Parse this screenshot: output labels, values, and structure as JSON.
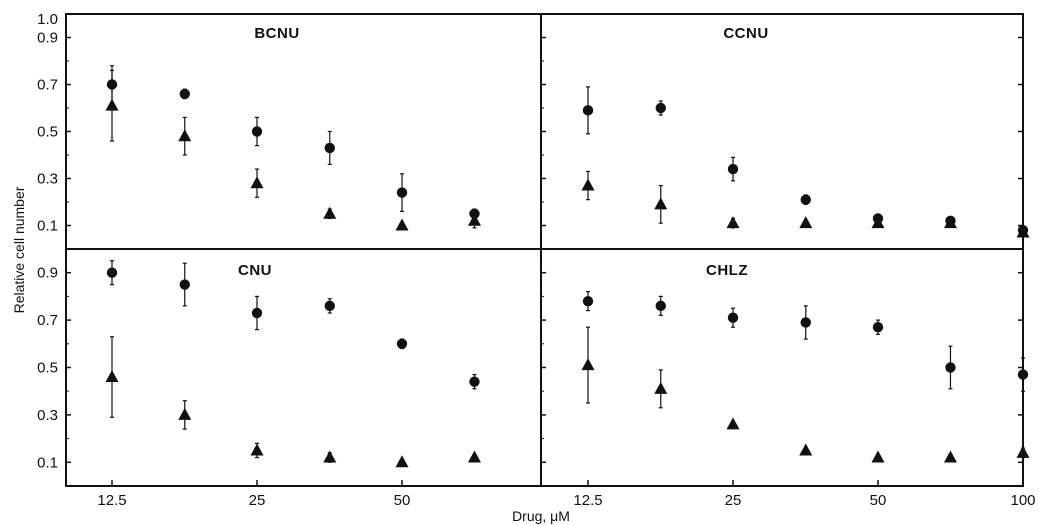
{
  "chart_data": {
    "type": "scatter",
    "ylabel": "Relative cell number",
    "xlabel": "Drug, μM",
    "x_scale": "log",
    "x_ticks": [
      12.5,
      25,
      50,
      100
    ],
    "x_tick_labels": [
      "12.5",
      "25",
      "50",
      "100"
    ],
    "y_axis_top_label": "1.0",
    "y_ticks": [
      0.1,
      0.3,
      0.5,
      0.7,
      0.9
    ],
    "y_tick_labels": [
      "0.1",
      "0.3",
      "0.5",
      "0.7",
      "0.9"
    ],
    "ylim": [
      0,
      1.0
    ],
    "markers": {
      "circle_series": "circle",
      "triangle_series": "triangle"
    },
    "colors": {
      "marker": "#111111",
      "frame": "#111111"
    },
    "panels": [
      {
        "title": "BCNU",
        "xlim": [
          10,
          80
        ],
        "series": [
          {
            "marker": "circle",
            "points": [
              {
                "x": 12.5,
                "y": 0.7,
                "err": 0.08
              },
              {
                "x": 17.7,
                "y": 0.66,
                "err": 0.02
              },
              {
                "x": 25,
                "y": 0.5,
                "err": 0.06
              },
              {
                "x": 35.4,
                "y": 0.43,
                "err": 0.07
              },
              {
                "x": 50,
                "y": 0.24,
                "err": 0.08
              },
              {
                "x": 70.7,
                "y": 0.15,
                "err": 0.02
              }
            ]
          },
          {
            "marker": "triangle",
            "points": [
              {
                "x": 12.5,
                "y": 0.61,
                "err": 0.15
              },
              {
                "x": 17.7,
                "y": 0.48,
                "err": 0.08
              },
              {
                "x": 25,
                "y": 0.28,
                "err": 0.06
              },
              {
                "x": 35.4,
                "y": 0.15,
                "err": 0.02
              },
              {
                "x": 50,
                "y": 0.1,
                "err": 0.01
              },
              {
                "x": 70.7,
                "y": 0.12,
                "err": 0.03
              }
            ]
          }
        ]
      },
      {
        "title": "CCNU",
        "xlim": [
          10,
          100
        ],
        "series": [
          {
            "marker": "circle",
            "points": [
              {
                "x": 12.5,
                "y": 0.59,
                "err": 0.1
              },
              {
                "x": 17.7,
                "y": 0.6,
                "err": 0.03
              },
              {
                "x": 25,
                "y": 0.34,
                "err": 0.05
              },
              {
                "x": 35.4,
                "y": 0.21,
                "err": 0.02
              },
              {
                "x": 50,
                "y": 0.13,
                "err": 0.01
              },
              {
                "x": 70.7,
                "y": 0.12,
                "err": 0.01
              },
              {
                "x": 100,
                "y": 0.08,
                "err": 0.01
              }
            ]
          },
          {
            "marker": "triangle",
            "points": [
              {
                "x": 12.5,
                "y": 0.27,
                "err": 0.06
              },
              {
                "x": 17.7,
                "y": 0.19,
                "err": 0.08
              },
              {
                "x": 25,
                "y": 0.11,
                "err": 0.02
              },
              {
                "x": 35.4,
                "y": 0.11,
                "err": 0.01
              },
              {
                "x": 50,
                "y": 0.11,
                "err": 0.01
              },
              {
                "x": 70.7,
                "y": 0.11,
                "err": 0.01
              },
              {
                "x": 100,
                "y": 0.07,
                "err": 0.01
              }
            ]
          }
        ]
      },
      {
        "title": "CNU",
        "xlim": [
          10,
          80
        ],
        "series": [
          {
            "marker": "circle",
            "points": [
              {
                "x": 12.5,
                "y": 0.9,
                "err": 0.05
              },
              {
                "x": 17.7,
                "y": 0.85,
                "err": 0.09
              },
              {
                "x": 25,
                "y": 0.73,
                "err": 0.07
              },
              {
                "x": 35.4,
                "y": 0.76,
                "err": 0.03
              },
              {
                "x": 50,
                "y": 0.6,
                "err": 0.02
              },
              {
                "x": 70.7,
                "y": 0.44,
                "err": 0.03
              }
            ]
          },
          {
            "marker": "triangle",
            "points": [
              {
                "x": 12.5,
                "y": 0.46,
                "err": 0.17
              },
              {
                "x": 17.7,
                "y": 0.3,
                "err": 0.06
              },
              {
                "x": 25,
                "y": 0.15,
                "err": 0.03
              },
              {
                "x": 35.4,
                "y": 0.12,
                "err": 0.02
              },
              {
                "x": 50,
                "y": 0.1,
                "err": 0.01
              },
              {
                "x": 70.7,
                "y": 0.12,
                "err": 0.01
              }
            ]
          }
        ]
      },
      {
        "title": "CHLZ",
        "xlim": [
          10,
          100
        ],
        "series": [
          {
            "marker": "circle",
            "points": [
              {
                "x": 12.5,
                "y": 0.78,
                "err": 0.04
              },
              {
                "x": 17.7,
                "y": 0.76,
                "err": 0.04
              },
              {
                "x": 25,
                "y": 0.71,
                "err": 0.04
              },
              {
                "x": 35.4,
                "y": 0.69,
                "err": 0.07
              },
              {
                "x": 50,
                "y": 0.67,
                "err": 0.03
              },
              {
                "x": 70.7,
                "y": 0.5,
                "err": 0.09
              },
              {
                "x": 100,
                "y": 0.47,
                "err": 0.07
              }
            ]
          },
          {
            "marker": "triangle",
            "points": [
              {
                "x": 12.5,
                "y": 0.51,
                "err": 0.16
              },
              {
                "x": 17.7,
                "y": 0.41,
                "err": 0.08
              },
              {
                "x": 25,
                "y": 0.26,
                "err": 0.01
              },
              {
                "x": 35.4,
                "y": 0.15,
                "err": 0.01
              },
              {
                "x": 50,
                "y": 0.12,
                "err": 0.01
              },
              {
                "x": 70.7,
                "y": 0.12,
                "err": 0.01
              },
              {
                "x": 100,
                "y": 0.14,
                "err": 0.02
              }
            ]
          }
        ]
      }
    ]
  }
}
